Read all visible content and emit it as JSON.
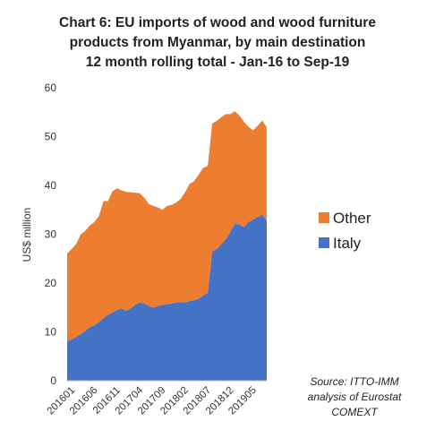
{
  "chart_data": {
    "type": "area",
    "stacked": true,
    "title_lines": [
      "Chart 6: EU imports of wood and wood furniture",
      "products from Myanmar, by main destination",
      "12 month rolling total  - Jan-16 to Sep-19"
    ],
    "ylabel": "US$ million",
    "xlabel": "",
    "ylim": [
      0,
      60
    ],
    "yticks": [
      0,
      10,
      20,
      30,
      40,
      50,
      60
    ],
    "grid": false,
    "legend_position": "right",
    "x": [
      "201601",
      "201602",
      "201603",
      "201604",
      "201605",
      "201606",
      "201607",
      "201608",
      "201609",
      "201610",
      "201611",
      "201612",
      "201701",
      "201702",
      "201703",
      "201704",
      "201705",
      "201706",
      "201707",
      "201708",
      "201709",
      "201710",
      "201711",
      "201712",
      "201801",
      "201802",
      "201803",
      "201804",
      "201805",
      "201806",
      "201807",
      "201808",
      "201809",
      "201810",
      "201811",
      "201812",
      "201901",
      "201902",
      "201903",
      "201904",
      "201905",
      "201906",
      "201907",
      "201908",
      "201909"
    ],
    "xtick_labels": [
      "201601",
      "201606",
      "201611",
      "201704",
      "201709",
      "201802",
      "201807",
      "201812",
      "201905"
    ],
    "series": [
      {
        "name": "Italy",
        "color": "#4472C4",
        "values": [
          8,
          8.5,
          9,
          9.5,
          10.2,
          11,
          11.3,
          12,
          12.8,
          13.5,
          14,
          14.5,
          14.8,
          14.3,
          14.8,
          15.5,
          16,
          15.8,
          15.3,
          15,
          15.3,
          15.5,
          15.7,
          15.8,
          16,
          16.1,
          16,
          16.3,
          16.5,
          16.8,
          17.5,
          18,
          26.5,
          27,
          28,
          29,
          30.5,
          32.2,
          32,
          31.5,
          32.5,
          33,
          33.5,
          34,
          32.8
        ]
      },
      {
        "name": "Other",
        "color": "#ED7D31",
        "values": [
          18,
          18.5,
          19,
          20.5,
          20.5,
          20.8,
          21.2,
          21.7,
          24,
          23.3,
          24.8,
          24.9,
          24.2,
          24.4,
          23.8,
          23,
          22.4,
          21.7,
          20.9,
          20.8,
          20.2,
          19.5,
          20.1,
          20.2,
          20.5,
          21.1,
          22.6,
          24,
          24.4,
          25.4,
          26.1,
          26,
          26.2,
          26.2,
          26,
          25.6,
          24.1,
          23,
          22.3,
          21.5,
          19.5,
          18.3,
          18.7,
          19.3,
          19.1
        ]
      }
    ],
    "source_lines": [
      "Source: ITTO-IMM",
      "analysis of Eurostat",
      "COMEXT"
    ]
  }
}
